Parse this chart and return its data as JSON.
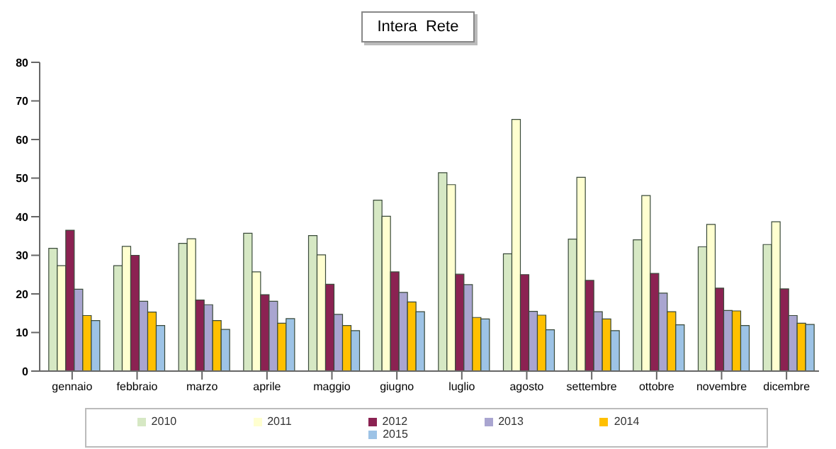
{
  "chart_data": {
    "type": "bar",
    "title": "Intera  Rete",
    "categories": [
      "gennaio",
      "febbraio",
      "marzo",
      "aprile",
      "maggio",
      "giugno",
      "luglio",
      "agosto",
      "settembre",
      "ottobre",
      "novembre",
      "dicembre"
    ],
    "series": [
      {
        "name": "2010",
        "color": "#d6e8c4",
        "values": [
          31.8,
          27.3,
          33.1,
          35.7,
          35.1,
          44.3,
          51.4,
          30.4,
          34.2,
          34,
          32.2,
          32.8
        ]
      },
      {
        "name": "2011",
        "color": "#ffffd0",
        "values": [
          27.3,
          32.3,
          34.3,
          25.7,
          30.1,
          40.1,
          48.3,
          65.2,
          50.2,
          45.5,
          38,
          38.7
        ]
      },
      {
        "name": "2012",
        "color": "#8b2252",
        "values": [
          36.5,
          30,
          18.4,
          19.8,
          22.5,
          25.7,
          25.1,
          25,
          23.5,
          25.3,
          21.5,
          21.3
        ]
      },
      {
        "name": "2013",
        "color": "#a9a5d0",
        "values": [
          21.2,
          18.1,
          17.2,
          18.1,
          14.7,
          20.4,
          22.4,
          15.5,
          15.4,
          20.2,
          15.7,
          14.4
        ]
      },
      {
        "name": "2014",
        "color": "#ffc000",
        "values": [
          14.4,
          15.3,
          13.1,
          12.4,
          11.8,
          17.9,
          13.9,
          14.5,
          13.5,
          15.4,
          15.6,
          12.4
        ]
      },
      {
        "name": "2015",
        "color": "#9dc3e6",
        "values": [
          13.1,
          11.8,
          10.8,
          13.6,
          10.5,
          15.4,
          13.5,
          10.7,
          10.5,
          12,
          11.8,
          12.1
        ]
      }
    ],
    "ylim": [
      0,
      80
    ],
    "yticks": [
      0,
      10,
      20,
      30,
      40,
      50,
      60,
      70,
      80
    ],
    "grid": false,
    "legend": "bottom"
  }
}
